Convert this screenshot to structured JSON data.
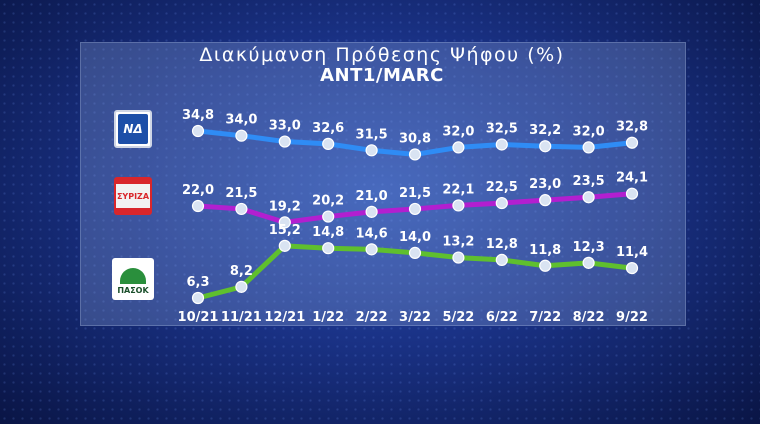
{
  "chart_data": {
    "type": "line",
    "title": "Διακύμανση Πρόθεσης Ψήφου (%)",
    "subtitle": "ANT1/MARC",
    "categories": [
      "10/21",
      "11/21",
      "12/21",
      "1/22",
      "2/22",
      "3/22",
      "5/22",
      "6/22",
      "7/22",
      "8/22",
      "9/22"
    ],
    "series": [
      {
        "logo": "nd-logo",
        "logo_text": "ΝΔ",
        "color": "#2f8cf5",
        "values": [
          34.8,
          34.0,
          33.0,
          32.6,
          31.5,
          30.8,
          32.0,
          32.5,
          32.2,
          32.0,
          32.8
        ],
        "labels": [
          "34,8",
          "34,0",
          "33,0",
          "32,6",
          "31,5",
          "30,8",
          "32,0",
          "32,5",
          "32,2",
          "32,0",
          "32,8"
        ]
      },
      {
        "logo": "syriza-logo",
        "logo_text": "ΣΥΡΙΖΑ",
        "color": "#b21fd0",
        "values": [
          22.0,
          21.5,
          19.2,
          20.2,
          21.0,
          21.5,
          22.1,
          22.5,
          23.0,
          23.5,
          24.1
        ],
        "labels": [
          "22,0",
          "21,5",
          "19,2",
          "20,2",
          "21,0",
          "21,5",
          "22,1",
          "22,5",
          "23,0",
          "23,5",
          "24,1"
        ]
      },
      {
        "logo": "pasok-logo",
        "logo_text": "ΠΑΣΟΚ",
        "color": "#5fbf2e",
        "values": [
          6.3,
          8.2,
          15.2,
          14.8,
          14.6,
          14.0,
          13.2,
          12.8,
          11.8,
          12.3,
          11.4
        ],
        "labels": [
          "6,3",
          "8,2",
          "15,2",
          "14,8",
          "14,6",
          "14,0",
          "13,2",
          "12,8",
          "11,8",
          "12,3",
          "11,4"
        ]
      }
    ]
  }
}
